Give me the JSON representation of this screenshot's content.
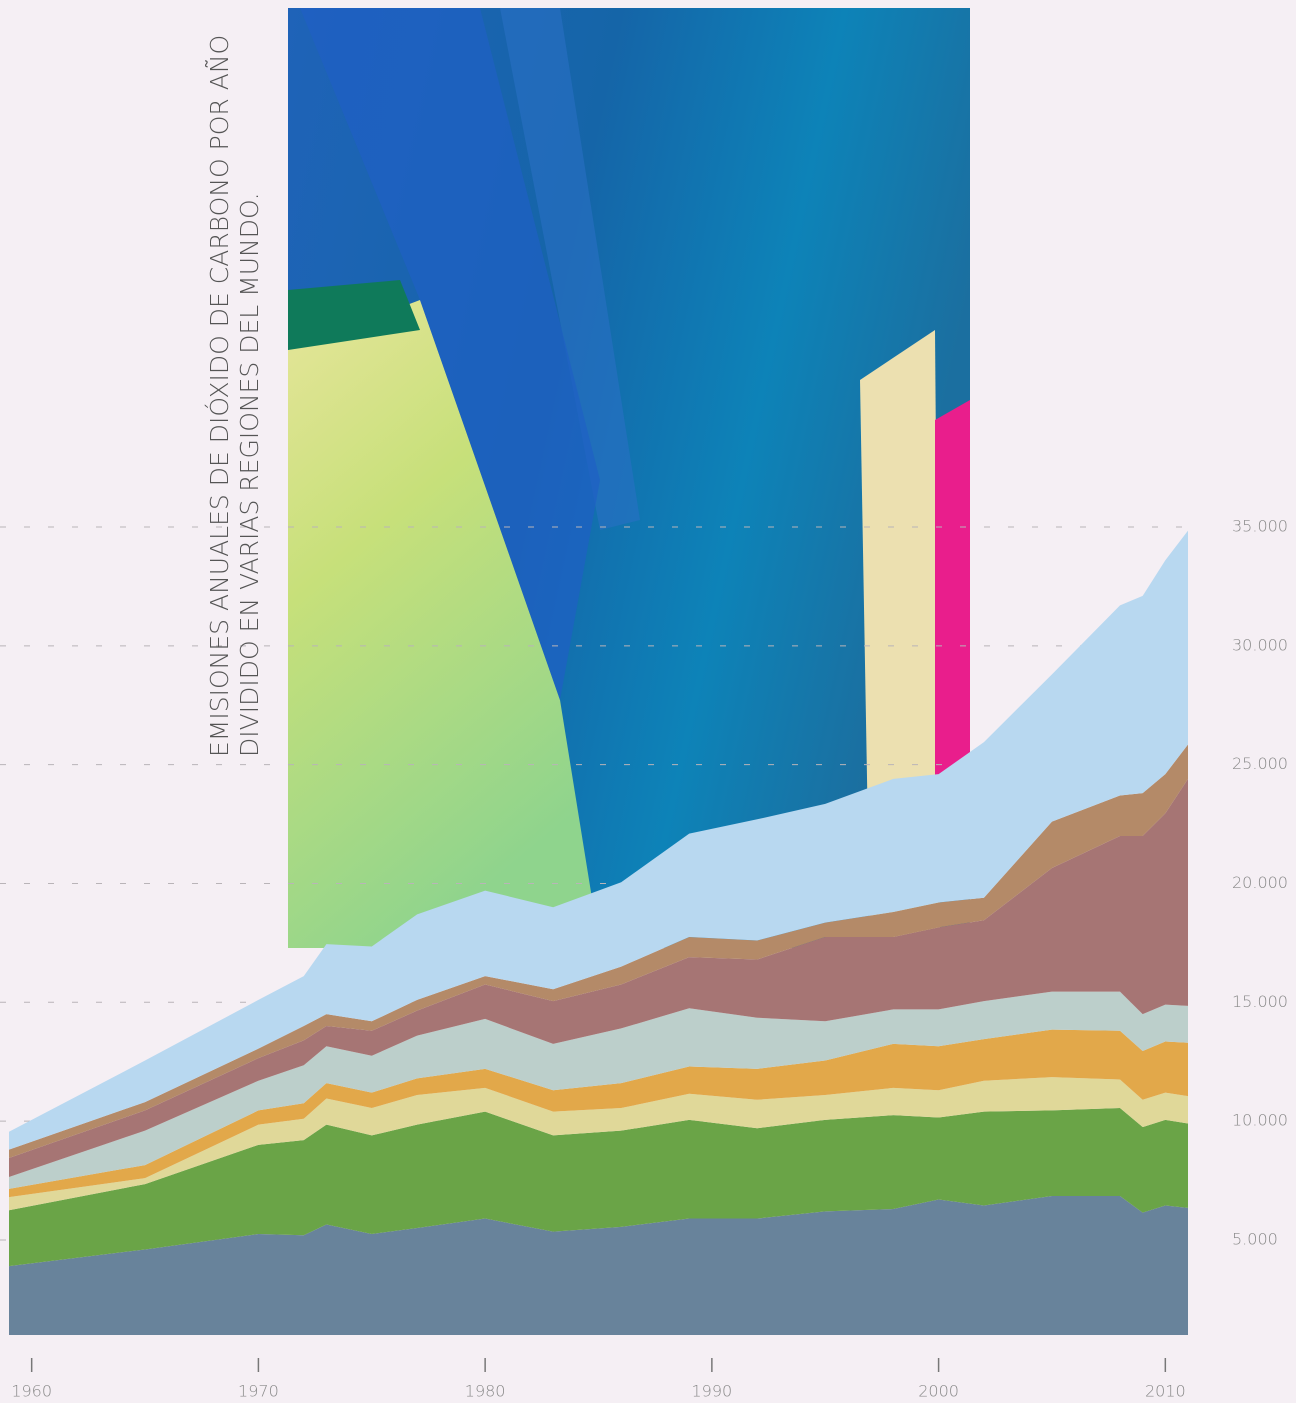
{
  "chart_data": {
    "type": "stacked_area",
    "title_lines": [
      "EMISIONES ANUALES DE DIÓXIDO DE CARBONO POR AÑO",
      "DIVIDIDO EN VARIAS REGIONES DEL MUNDO."
    ],
    "x": [
      1959,
      1965,
      1970,
      1972,
      1973,
      1975,
      1977,
      1980,
      1983,
      1986,
      1989,
      1992,
      1995,
      1998,
      2000,
      2002,
      2005,
      2008,
      2009,
      2010,
      2011
    ],
    "series": [
      {
        "color": "#68839b",
        "values": [
          3900,
          4600,
          5250,
          5200,
          5650,
          5250,
          5500,
          5900,
          5350,
          5550,
          5900,
          5900,
          6200,
          6300,
          6700,
          6450,
          6850,
          6850,
          6150,
          6450,
          6350
        ]
      },
      {
        "color": "#6aa447",
        "values": [
          2350,
          2750,
          3750,
          4000,
          4200,
          4150,
          4350,
          4500,
          4050,
          4050,
          4150,
          3800,
          3850,
          3950,
          3450,
          3950,
          3600,
          3700,
          3600,
          3600,
          3550
        ]
      },
      {
        "color": "#e0d899",
        "values": [
          550,
          250,
          850,
          900,
          1100,
          1150,
          1250,
          1000,
          1000,
          950,
          1100,
          1200,
          1050,
          1150,
          1150,
          1300,
          1400,
          1200,
          1150,
          1150,
          1150
        ]
      },
      {
        "color": "#e2a84a",
        "values": [
          350,
          550,
          600,
          650,
          650,
          650,
          700,
          800,
          900,
          1050,
          1150,
          1300,
          1450,
          1850,
          1850,
          1750,
          2000,
          2050,
          2050,
          2150,
          2250
        ]
      },
      {
        "color": "#bccfcb",
        "values": [
          500,
          1450,
          1250,
          1600,
          1550,
          1550,
          1800,
          2100,
          1950,
          2300,
          2450,
          2150,
          1650,
          1450,
          1550,
          1600,
          1600,
          1650,
          1550,
          1550,
          1550
        ]
      },
      {
        "color": "#a67574",
        "values": [
          800,
          850,
          950,
          1050,
          850,
          1050,
          1050,
          1450,
          1800,
          1850,
          2150,
          2450,
          3550,
          3050,
          3450,
          3400,
          5200,
          6550,
          7500,
          8050,
          9550
        ]
      },
      {
        "color": "#b48a68",
        "values": [
          350,
          350,
          400,
          600,
          500,
          400,
          450,
          350,
          500,
          750,
          850,
          800,
          600,
          1050,
          1050,
          950,
          1950,
          1700,
          1800,
          1650,
          1450
        ]
      },
      {
        "color": "#b8d8f0",
        "values": [
          750,
          1750,
          2050,
          2100,
          2950,
          3150,
          3600,
          3600,
          3450,
          3550,
          4350,
          5100,
          5000,
          5600,
          5400,
          6550,
          6200,
          8000,
          8300,
          9000,
          9000
        ]
      }
    ],
    "xlim": [
      1959,
      2011
    ],
    "xticks": [
      1960,
      1970,
      1980,
      1990,
      2000,
      2010
    ],
    "ylim": [
      1000,
      35000
    ],
    "yticks": [
      {
        "value": 5000,
        "label": "5.000"
      },
      {
        "value": 10000,
        "label": "10.000"
      },
      {
        "value": 15000,
        "label": "15.000"
      },
      {
        "value": 20000,
        "label": "20.000"
      },
      {
        "value": 25000,
        "label": "25.000"
      },
      {
        "value": 30000,
        "label": "30.000"
      },
      {
        "value": 35000,
        "label": "35.000"
      }
    ],
    "grid": true
  }
}
